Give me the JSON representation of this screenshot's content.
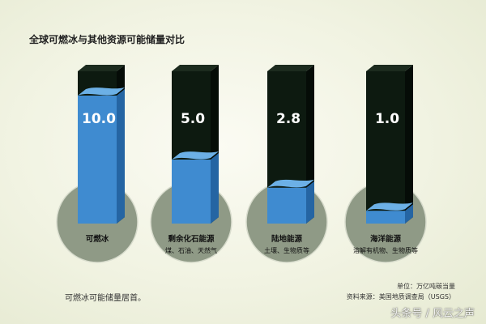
{
  "chart_data": {
    "type": "bar",
    "title": "全球可燃冰与其他资源可能储量对比",
    "categories": [
      "可燃冰",
      "剩余化石能源",
      "陆地能源",
      "海洋能源"
    ],
    "subtitles": [
      "",
      "煤、石油、天然气",
      "土壤、生物质等",
      "溶解有机物、生物质等"
    ],
    "values": [
      10.0,
      5.0,
      2.8,
      1.0
    ],
    "value_labels": [
      "10.0",
      "5.0",
      "2.8",
      "1.0"
    ],
    "ylim": [
      0,
      10
    ],
    "unit": "单位：万亿吨碳当量",
    "source": "资料来源：美国地质调查局（USGS）",
    "note": "可燃冰可能储量居首。",
    "colors": {
      "water_front": "#3f8bd0",
      "water_side": "#2565a3",
      "water_top": "#6cb0e6",
      "tank_front": "#0d1a10",
      "tank_side": "#050c07",
      "tank_top": "#1c2b1e",
      "circle": "#8f9a86"
    }
  },
  "watermark": "头条号 / 风云之声"
}
